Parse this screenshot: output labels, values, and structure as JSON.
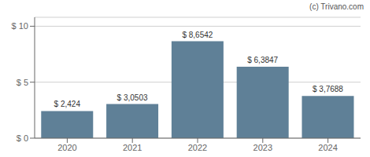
{
  "chart_data": {
    "type": "bar",
    "categories": [
      "2020",
      "2021",
      "2022",
      "2023",
      "2024"
    ],
    "values": [
      2.424,
      3.0503,
      8.6542,
      6.3847,
      3.7688
    ],
    "value_labels": [
      "$ 2,424",
      "$ 3,0503",
      "$ 8,6542",
      "$ 6,3847",
      "$ 3,7688"
    ],
    "data_labels": true,
    "color": "#5f8097",
    "ylim": [
      0,
      10.8
    ],
    "yticks": [
      {
        "value": 0,
        "label": "$ 0"
      },
      {
        "value": 5,
        "label": "$ 5"
      },
      {
        "value": 10,
        "label": "$ 10"
      }
    ],
    "grid": true,
    "annotations": [
      "(c) Trivano.com"
    ]
  }
}
